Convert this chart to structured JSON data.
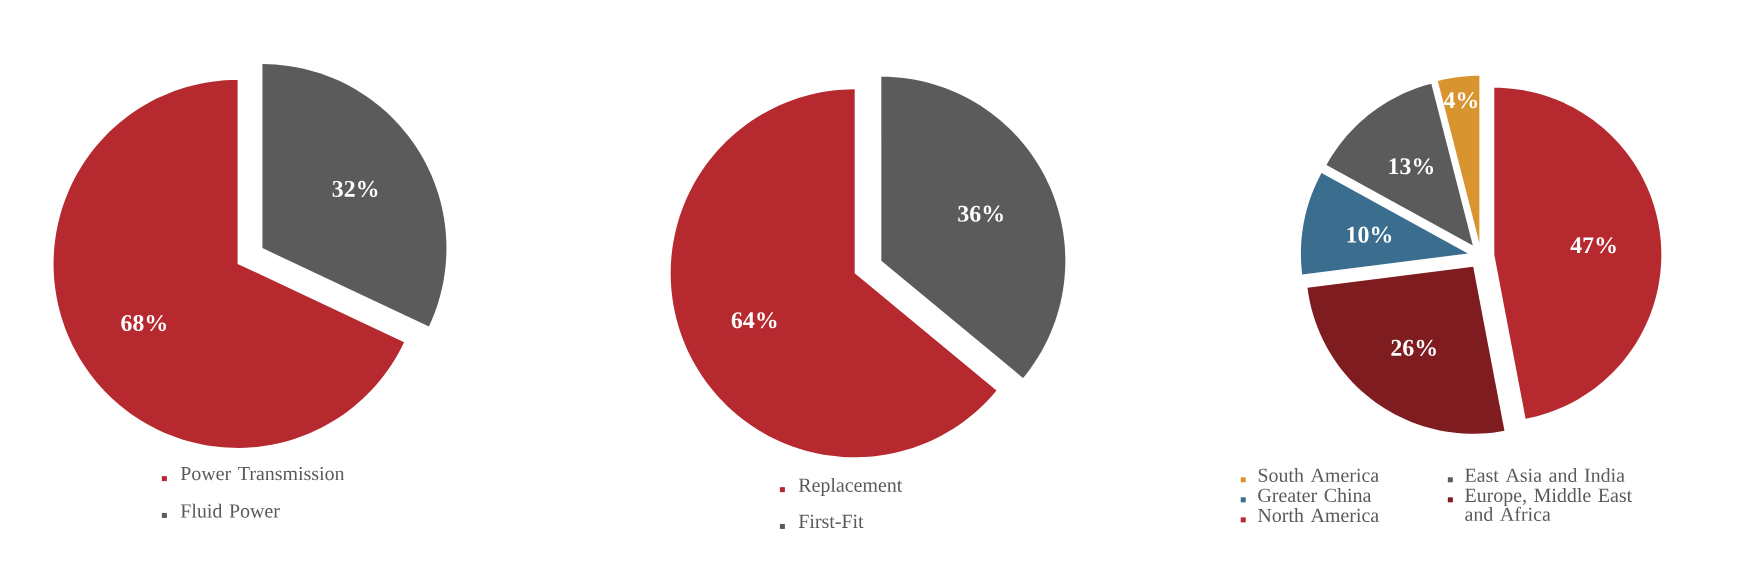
{
  "chart_data": [
    {
      "type": "pie",
      "categories": [
        "Power Transmission",
        "Fluid Power"
      ],
      "values": [
        68,
        32
      ],
      "colors": [
        "#b5292f",
        "#5a5b5a"
      ],
      "value_labels": [
        "68%",
        "32%"
      ],
      "legend": "bottom"
    },
    {
      "type": "pie",
      "categories": [
        "Replacement",
        "First-Fit"
      ],
      "values": [
        64,
        36
      ],
      "colors": [
        "#b5292f",
        "#5a5b5a"
      ],
      "value_labels": [
        "64%",
        "36%"
      ],
      "legend": "bottom"
    },
    {
      "type": "pie",
      "categories": [
        "South America",
        "East Asia and India",
        "Greater China",
        "Europe, Middle East and Africa",
        "North America"
      ],
      "values": [
        4,
        13,
        10,
        26,
        47
      ],
      "colors": [
        "#d8952f",
        "#5a5b5a",
        "#3b6e8e",
        "#7e1c1f",
        "#b5292f"
      ],
      "value_labels": [
        "4%",
        "13%",
        "10%",
        "26%",
        "47%"
      ],
      "legend": "bottom"
    }
  ]
}
